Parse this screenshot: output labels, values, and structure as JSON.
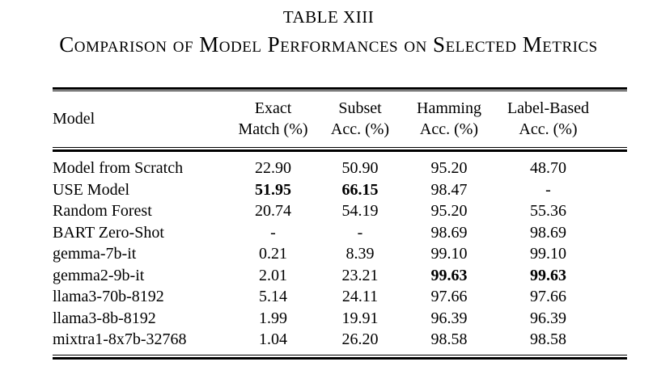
{
  "page": {
    "background": "#ffffff",
    "text_color": "#000000"
  },
  "caption": {
    "label": "TABLE XIII",
    "title": "Comparison of Model Performances on Selected Metrics"
  },
  "chart_data": {
    "type": "table",
    "title": "Comparison of Model Performances on Selected Metrics",
    "columns": [
      "Model",
      "Exact Match (%)",
      "Subset Acc. (%)",
      "Hamming Acc. (%)",
      "Label-Based Acc. (%)"
    ],
    "header": {
      "model": "Model",
      "col1_line1": "Exact",
      "col1_line2": "Match (%)",
      "col2_line1": "Subset",
      "col2_line2": "Acc. (%)",
      "col3_line1": "Hamming",
      "col3_line2": "Acc. (%)",
      "col4_line1": "Label-Based",
      "col4_line2": "Acc. (%)"
    },
    "rows": [
      {
        "model": "Model from Scratch",
        "cells": [
          "22.90",
          "50.90",
          "95.20",
          "48.70"
        ],
        "bold": []
      },
      {
        "model": "USE Model",
        "cells": [
          "51.95",
          "66.15",
          "98.47",
          "-"
        ],
        "bold": [
          0,
          1
        ]
      },
      {
        "model": "Random Forest",
        "cells": [
          "20.74",
          "54.19",
          "95.20",
          "55.36"
        ],
        "bold": []
      },
      {
        "model": "BART Zero-Shot",
        "cells": [
          "-",
          "-",
          "98.69",
          "98.69"
        ],
        "bold": []
      },
      {
        "model": "gemma-7b-it",
        "cells": [
          "0.21",
          "8.39",
          "99.10",
          "99.10"
        ],
        "bold": []
      },
      {
        "model": "gemma2-9b-it",
        "cells": [
          "2.01",
          "23.21",
          "99.63",
          "99.63"
        ],
        "bold": [
          2,
          3
        ]
      },
      {
        "model": "llama3-70b-8192",
        "cells": [
          "5.14",
          "24.11",
          "97.66",
          "97.66"
        ],
        "bold": []
      },
      {
        "model": "llama3-8b-8192",
        "cells": [
          "1.99",
          "19.91",
          "96.39",
          "96.39"
        ],
        "bold": []
      },
      {
        "model": "mixtra1-8x7b-32768",
        "cells": [
          "1.04",
          "26.20",
          "98.58",
          "98.58"
        ],
        "bold": []
      }
    ]
  }
}
